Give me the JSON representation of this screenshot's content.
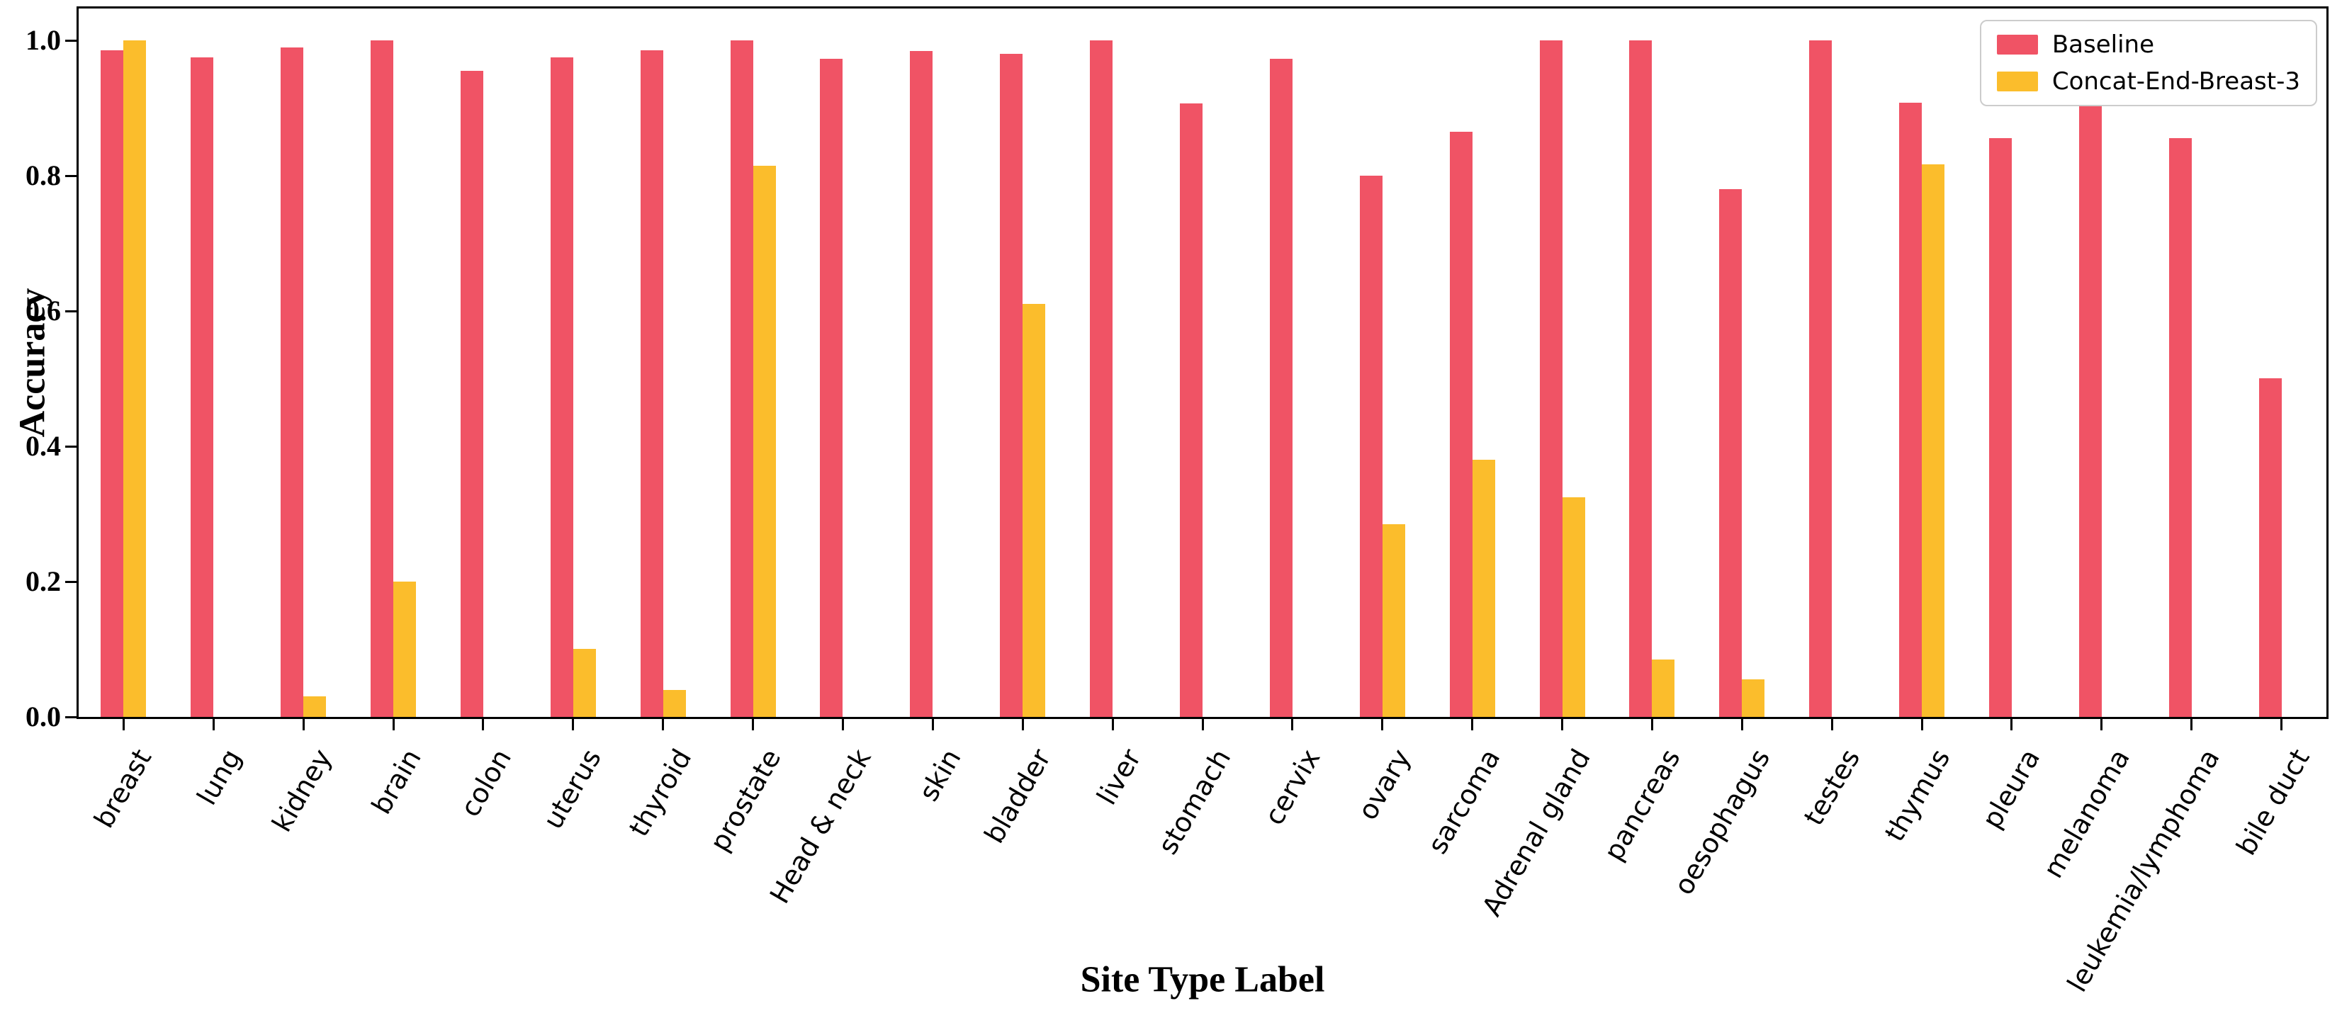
{
  "axes": {
    "y_label": "Accuracy",
    "x_label": "Site Type Label",
    "y_ticks": [
      "0.0",
      "0.2",
      "0.4",
      "0.6",
      "0.8",
      "1.0"
    ]
  },
  "legend": {
    "position": "upper right"
  },
  "colors": {
    "baseline": "#F05365",
    "concat": "#FBBD2C",
    "axis": "#000000",
    "legend_border": "#CCCCCC"
  },
  "chart_data": {
    "type": "bar",
    "title": "",
    "xlabel": "Site Type Label",
    "ylabel": "Accuracy",
    "categories": [
      "breast",
      "lung",
      "kidney",
      "brain",
      "colon",
      "uterus",
      "thyroid",
      "prostate",
      "Head & neck",
      "skin",
      "bladder",
      "liver",
      "stomach",
      "cervix",
      "ovary",
      "sarcoma",
      "Adrenal gland",
      "pancreas",
      "oesophagus",
      "testes",
      "thymus",
      "pleura",
      "melanoma",
      "leukemia/lymphoma",
      "bile duct"
    ],
    "series": [
      {
        "name": "Baseline",
        "color": "#F05365",
        "values": [
          0.985,
          0.975,
          0.99,
          1.0,
          0.955,
          0.975,
          0.985,
          1.0,
          0.973,
          0.984,
          0.98,
          1.0,
          0.907,
          0.973,
          0.8,
          0.865,
          1.0,
          1.0,
          0.78,
          1.0,
          0.908,
          0.855,
          0.905,
          0.855,
          0.5
        ]
      },
      {
        "name": "Concat-End-Breast-3",
        "color": "#FBBD2C",
        "values": [
          1.0,
          0.0,
          0.03,
          0.2,
          0.0,
          0.1,
          0.04,
          0.815,
          0.0,
          0.0,
          0.61,
          0.0,
          0.0,
          0.0,
          0.285,
          0.38,
          0.325,
          0.085,
          0.055,
          0.0,
          0.817,
          0.0,
          0.0,
          0.0,
          0.0
        ]
      }
    ],
    "ylim": [
      0.0,
      1.05
    ],
    "y_tick_values": [
      0.0,
      0.2,
      0.4,
      0.6,
      0.8,
      1.0
    ],
    "grid": false,
    "legend_position": "upper right"
  }
}
